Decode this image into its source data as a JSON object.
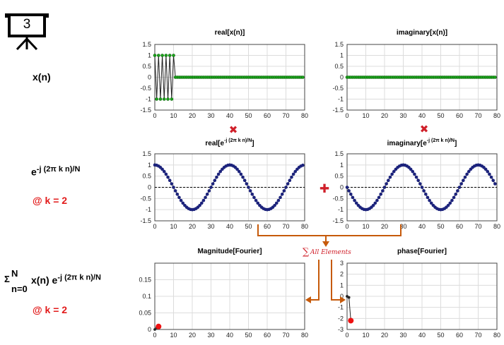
{
  "slide_number": "3",
  "left_labels": {
    "signal": "x(n)",
    "basis_base": "e",
    "basis_exponent": "-j (2π k n)/N",
    "basis_k": "@ k = 2",
    "sum_symbol": "Σ",
    "sum_upper": "N",
    "sum_lower": "n=0",
    "sum_term": "x(n) e",
    "sum_exponent": "-j (2π k n)/N",
    "sum_k": "@ k = 2"
  },
  "operators": {
    "multiply_symbol": "✖",
    "add_symbol": "✚",
    "sum_note_symbol": "∑",
    "sum_note_text": "All Elements"
  },
  "colors": {
    "signal_markers": "#1aa31a",
    "basis_markers": "#1c237c",
    "arrows": "#c65a0a",
    "result_marker": "#ee1111",
    "operator_red": "#e21a1a"
  },
  "chart_data": [
    {
      "id": "real_x",
      "type": "line",
      "title": "real[x(n)]",
      "title_sup": "",
      "title_end": "",
      "xlim": [
        0,
        80
      ],
      "ylim": [
        -1.5,
        1.5
      ],
      "xticks": [
        0,
        10,
        20,
        30,
        40,
        50,
        60,
        70,
        80
      ],
      "yticks": [
        1.5,
        1,
        0.5,
        0,
        -0.5,
        -1,
        -1.5
      ],
      "grid": true,
      "marker_color": "#1aa31a",
      "series": [
        {
          "x": [
            0,
            1,
            2,
            3,
            4,
            5,
            6,
            7,
            8,
            9,
            10,
            11,
            12,
            13,
            14,
            15,
            16,
            17,
            18,
            19,
            20,
            21,
            22,
            23,
            24,
            25,
            26,
            27,
            28,
            29,
            30,
            31,
            32,
            33,
            34,
            35,
            36,
            37,
            38,
            39,
            40,
            41,
            42,
            43,
            44,
            45,
            46,
            47,
            48,
            49,
            50,
            51,
            52,
            53,
            54,
            55,
            56,
            57,
            58,
            59,
            60,
            61,
            62,
            63,
            64,
            65,
            66,
            67,
            68,
            69,
            70,
            71,
            72,
            73,
            74,
            75,
            76,
            77,
            78,
            79
          ],
          "y": [
            1,
            -1,
            1,
            -1,
            1,
            -1,
            1,
            -1,
            1,
            -1,
            1,
            0,
            0,
            0,
            0,
            0,
            0,
            0,
            0,
            0,
            0,
            0,
            0,
            0,
            0,
            0,
            0,
            0,
            0,
            0,
            0,
            0,
            0,
            0,
            0,
            0,
            0,
            0,
            0,
            0,
            0,
            0,
            0,
            0,
            0,
            0,
            0,
            0,
            0,
            0,
            0,
            0,
            0,
            0,
            0,
            0,
            0,
            0,
            0,
            0,
            0,
            0,
            0,
            0,
            0,
            0,
            0,
            0,
            0,
            0,
            0,
            0,
            0,
            0,
            0,
            0,
            0,
            0,
            0,
            0
          ]
        }
      ]
    },
    {
      "id": "imag_x",
      "type": "line",
      "title": "imaginary[x(n)]",
      "title_sup": "",
      "title_end": "",
      "xlim": [
        0,
        80
      ],
      "ylim": [
        -1.5,
        1.5
      ],
      "xticks": [
        0,
        10,
        20,
        30,
        40,
        50,
        60,
        70,
        80
      ],
      "yticks": [
        1.5,
        1,
        0.5,
        0,
        -0.5,
        -1,
        -1.5
      ],
      "grid": true,
      "marker_color": "#1aa31a",
      "series": [
        {
          "x": [
            0,
            1,
            2,
            3,
            4,
            5,
            6,
            7,
            8,
            9,
            10,
            11,
            12,
            13,
            14,
            15,
            16,
            17,
            18,
            19,
            20,
            21,
            22,
            23,
            24,
            25,
            26,
            27,
            28,
            29,
            30,
            31,
            32,
            33,
            34,
            35,
            36,
            37,
            38,
            39,
            40,
            41,
            42,
            43,
            44,
            45,
            46,
            47,
            48,
            49,
            50,
            51,
            52,
            53,
            54,
            55,
            56,
            57,
            58,
            59,
            60,
            61,
            62,
            63,
            64,
            65,
            66,
            67,
            68,
            69,
            70,
            71,
            72,
            73,
            74,
            75,
            76,
            77,
            78,
            79
          ],
          "y": [
            0,
            0,
            0,
            0,
            0,
            0,
            0,
            0,
            0,
            0,
            0,
            0,
            0,
            0,
            0,
            0,
            0,
            0,
            0,
            0,
            0,
            0,
            0,
            0,
            0,
            0,
            0,
            0,
            0,
            0,
            0,
            0,
            0,
            0,
            0,
            0,
            0,
            0,
            0,
            0,
            0,
            0,
            0,
            0,
            0,
            0,
            0,
            0,
            0,
            0,
            0,
            0,
            0,
            0,
            0,
            0,
            0,
            0,
            0,
            0,
            0,
            0,
            0,
            0,
            0,
            0,
            0,
            0,
            0,
            0,
            0,
            0,
            0,
            0,
            0,
            0,
            0,
            0,
            0,
            0
          ]
        }
      ]
    },
    {
      "id": "real_e",
      "type": "line",
      "title": "real[e",
      "title_sup": "-j (2π k n)/N",
      "title_end": "]",
      "xlim": [
        0,
        80
      ],
      "ylim": [
        -1.5,
        1.5
      ],
      "xticks": [
        0,
        10,
        20,
        30,
        40,
        50,
        60,
        70,
        80
      ],
      "yticks": [
        1.5,
        1,
        0.5,
        0,
        -0.5,
        -1,
        -1.5
      ],
      "grid": true,
      "marker_color": "#1c237c",
      "dashed_zero": true,
      "series": [
        {
          "x": [
            0,
            1,
            2,
            3,
            4,
            5,
            6,
            7,
            8,
            9,
            10,
            11,
            12,
            13,
            14,
            15,
            16,
            17,
            18,
            19,
            20,
            21,
            22,
            23,
            24,
            25,
            26,
            27,
            28,
            29,
            30,
            31,
            32,
            33,
            34,
            35,
            36,
            37,
            38,
            39,
            40,
            41,
            42,
            43,
            44,
            45,
            46,
            47,
            48,
            49,
            50,
            51,
            52,
            53,
            54,
            55,
            56,
            57,
            58,
            59,
            60,
            61,
            62,
            63,
            64,
            65,
            66,
            67,
            68,
            69,
            70,
            71,
            72,
            73,
            74,
            75,
            76,
            77,
            78,
            79
          ],
          "y": [
            1,
            0.988,
            0.951,
            0.891,
            0.809,
            0.707,
            0.588,
            0.454,
            0.309,
            0.156,
            0,
            -0.156,
            -0.309,
            -0.454,
            -0.588,
            -0.707,
            -0.809,
            -0.891,
            -0.951,
            -0.988,
            -1,
            -0.988,
            -0.951,
            -0.891,
            -0.809,
            -0.707,
            -0.588,
            -0.454,
            -0.309,
            -0.156,
            0,
            0.156,
            0.309,
            0.454,
            0.588,
            0.707,
            0.809,
            0.891,
            0.951,
            0.988,
            1,
            0.988,
            0.951,
            0.891,
            0.809,
            0.707,
            0.588,
            0.454,
            0.309,
            0.156,
            0,
            -0.156,
            -0.309,
            -0.454,
            -0.588,
            -0.707,
            -0.809,
            -0.891,
            -0.951,
            -0.988,
            -1,
            -0.988,
            -0.951,
            -0.891,
            -0.809,
            -0.707,
            -0.588,
            -0.454,
            -0.309,
            -0.156,
            0,
            0.156,
            0.309,
            0.454,
            0.588,
            0.707,
            0.809,
            0.891,
            0.951,
            0.988
          ]
        }
      ]
    },
    {
      "id": "imag_e",
      "type": "line",
      "title": "imaginary[e",
      "title_sup": "-j (2π k n)/N",
      "title_end": "]",
      "xlim": [
        0,
        80
      ],
      "ylim": [
        -1.5,
        1.5
      ],
      "xticks": [
        0,
        10,
        20,
        30,
        40,
        50,
        60,
        70,
        80
      ],
      "yticks": [
        1.5,
        1,
        0.5,
        0,
        -0.5,
        -1,
        -1.5
      ],
      "grid": true,
      "marker_color": "#1c237c",
      "dashed_zero": true,
      "series": [
        {
          "x": [
            0,
            1,
            2,
            3,
            4,
            5,
            6,
            7,
            8,
            9,
            10,
            11,
            12,
            13,
            14,
            15,
            16,
            17,
            18,
            19,
            20,
            21,
            22,
            23,
            24,
            25,
            26,
            27,
            28,
            29,
            30,
            31,
            32,
            33,
            34,
            35,
            36,
            37,
            38,
            39,
            40,
            41,
            42,
            43,
            44,
            45,
            46,
            47,
            48,
            49,
            50,
            51,
            52,
            53,
            54,
            55,
            56,
            57,
            58,
            59,
            60,
            61,
            62,
            63,
            64,
            65,
            66,
            67,
            68,
            69,
            70,
            71,
            72,
            73,
            74,
            75,
            76,
            77,
            78,
            79
          ],
          "y": [
            0,
            -0.156,
            -0.309,
            -0.454,
            -0.588,
            -0.707,
            -0.809,
            -0.891,
            -0.951,
            -0.988,
            -1,
            -0.988,
            -0.951,
            -0.891,
            -0.809,
            -0.707,
            -0.588,
            -0.454,
            -0.309,
            -0.156,
            0,
            0.156,
            0.309,
            0.454,
            0.588,
            0.707,
            0.809,
            0.891,
            0.951,
            0.988,
            1,
            0.988,
            0.951,
            0.891,
            0.809,
            0.707,
            0.588,
            0.454,
            0.309,
            0.156,
            0,
            -0.156,
            -0.309,
            -0.454,
            -0.588,
            -0.707,
            -0.809,
            -0.891,
            -0.951,
            -0.988,
            -1,
            -0.988,
            -0.951,
            -0.891,
            -0.809,
            -0.707,
            -0.588,
            -0.454,
            -0.309,
            -0.156,
            0,
            0.156,
            0.309,
            0.454,
            0.588,
            0.707,
            0.809,
            0.891,
            0.951,
            0.988,
            1,
            0.988,
            0.951,
            0.891,
            0.809,
            0.707,
            0.588,
            0.454,
            0.309,
            0.156
          ]
        }
      ]
    },
    {
      "id": "magnitude",
      "type": "line",
      "title": "Magnitude[Fourier]",
      "title_sup": "",
      "title_end": "",
      "xlim": [
        0,
        80
      ],
      "ylim": [
        0,
        0.2
      ],
      "xticks": [
        0,
        10,
        20,
        30,
        40,
        50,
        60,
        70,
        80
      ],
      "yticks": [
        0.15,
        0.1,
        0.05,
        0
      ],
      "grid": true,
      "marker_color": "#222222",
      "highlight_color": "#ee1111",
      "series": [
        {
          "x": [
            0,
            1,
            2
          ],
          "y": [
            0,
            0.005,
            0.009
          ],
          "highlight_index": 2
        }
      ]
    },
    {
      "id": "phase",
      "type": "line",
      "title": "phase[Fourier]",
      "title_sup": "",
      "title_end": "",
      "xlim": [
        0,
        80
      ],
      "ylim": [
        -3,
        3
      ],
      "xticks": [
        0,
        10,
        20,
        30,
        40,
        50,
        60,
        70,
        80
      ],
      "yticks": [
        3,
        2,
        1,
        0,
        -1,
        -2,
        -3
      ],
      "grid": true,
      "marker_color": "#222222",
      "highlight_color": "#ee1111",
      "series": [
        {
          "x": [
            0,
            1,
            2
          ],
          "y": [
            0,
            -0.1,
            -2.2
          ],
          "highlight_index": 2
        }
      ]
    }
  ]
}
